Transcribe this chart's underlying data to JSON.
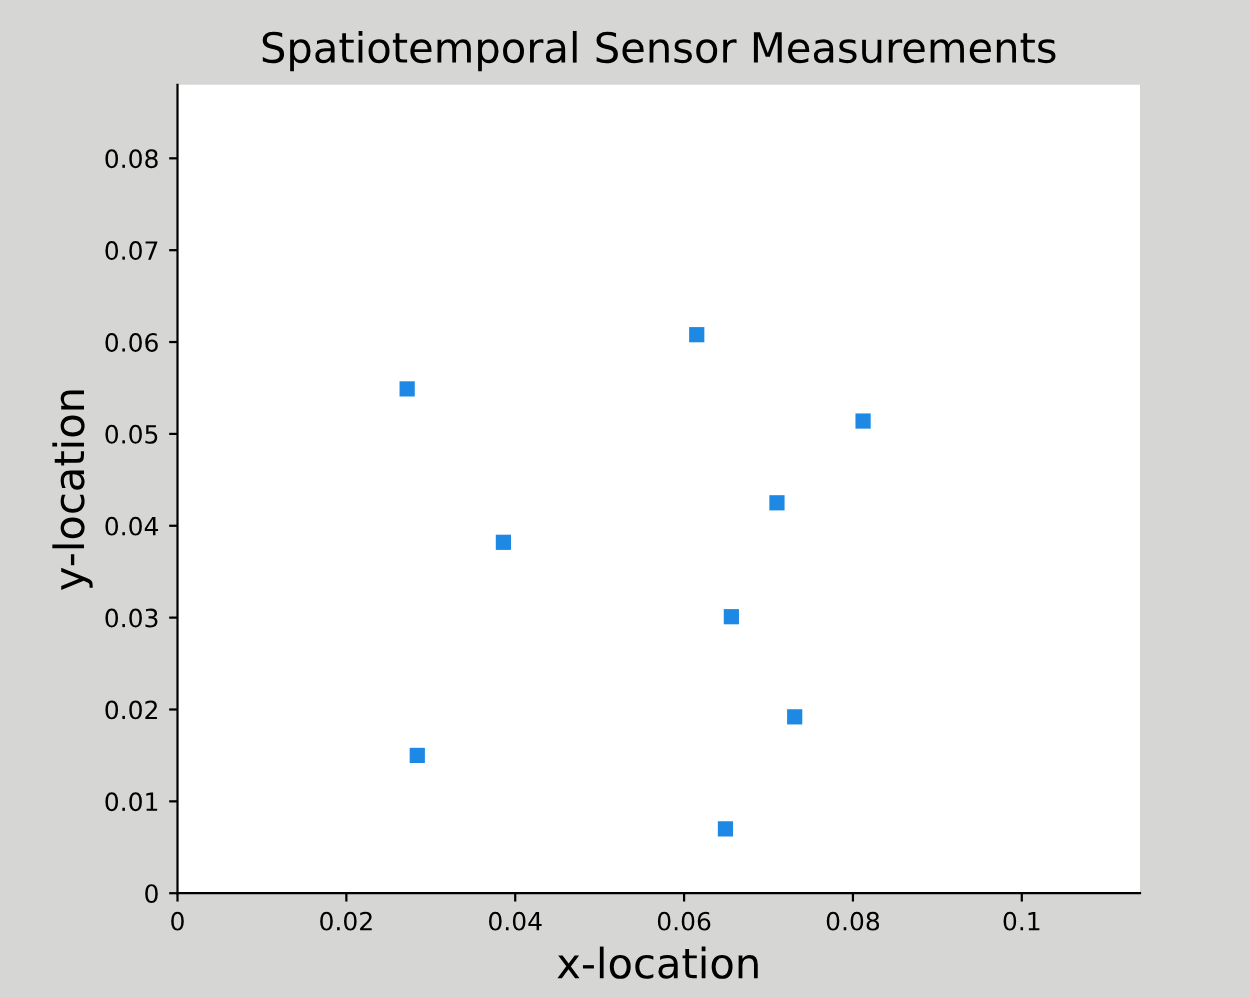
{
  "chart_data": {
    "type": "scatter",
    "title": "Spatiotemporal Sensor Measurements",
    "xlabel": "x-location",
    "ylabel": "y-location",
    "series": [
      {
        "color": "#1e88e5",
        "x": [
          0.0272,
          0.0615,
          0.0812,
          0.071,
          0.0386,
          0.0656,
          0.0731,
          0.0284,
          0.0649
        ],
        "values": [
          0.0549,
          0.0608,
          0.0514,
          0.0425,
          0.0382,
          0.0301,
          0.0192,
          0.015,
          0.007
        ]
      }
    ],
    "marker": "square",
    "grid": false,
    "legend": false,
    "xlim": [
      0,
      0.114
    ],
    "ylim": [
      0,
      0.088
    ],
    "xticks": [
      0,
      0.02,
      0.04,
      0.06,
      0.08,
      0.1
    ],
    "yticks": [
      0,
      0.01,
      0.02,
      0.03,
      0.04,
      0.05,
      0.06,
      0.07,
      0.08
    ]
  }
}
